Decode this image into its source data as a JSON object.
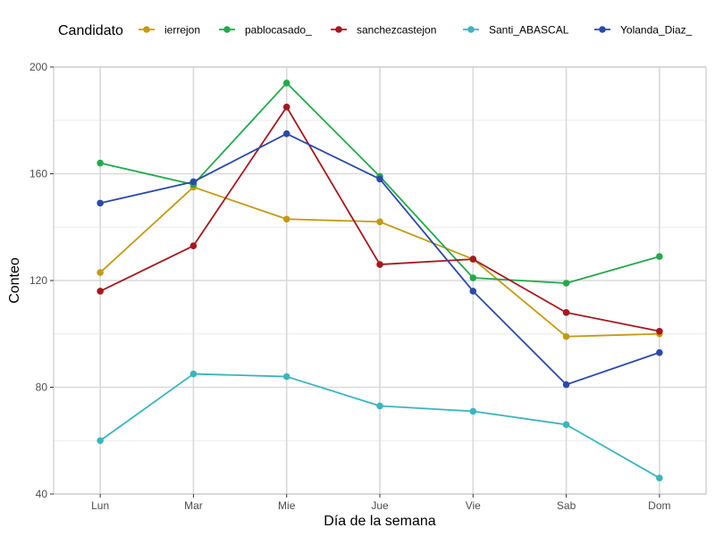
{
  "chart_data": {
    "type": "line",
    "xlabel": "Día de la semana",
    "ylabel": "Conteo",
    "legend_title": "Candidato",
    "legend_position": "top",
    "categories": [
      "Lun",
      "Mar",
      "Mie",
      "Jue",
      "Vie",
      "Sab",
      "Dom"
    ],
    "ylim": [
      40,
      200
    ],
    "yticks": [
      40,
      80,
      120,
      160,
      200
    ],
    "grid": true,
    "series": [
      {
        "name": "ierrejon",
        "color": "#C49A13",
        "values": [
          123,
          155,
          143,
          142,
          128,
          99,
          100
        ]
      },
      {
        "name": "pablocasado_",
        "color": "#22A94A",
        "values": [
          164,
          156,
          194,
          159,
          121,
          119,
          129
        ]
      },
      {
        "name": "sanchezcastejon",
        "color": "#A4181F",
        "values": [
          116,
          133,
          185,
          126,
          128,
          108,
          101
        ]
      },
      {
        "name": "Santi_ABASCAL",
        "color": "#3BB5BD",
        "values": [
          60,
          85,
          84,
          73,
          71,
          66,
          46
        ]
      },
      {
        "name": "Yolanda_Diaz_",
        "color": "#2B4AA8",
        "values": [
          149,
          157,
          175,
          158,
          116,
          81,
          93
        ]
      }
    ]
  }
}
